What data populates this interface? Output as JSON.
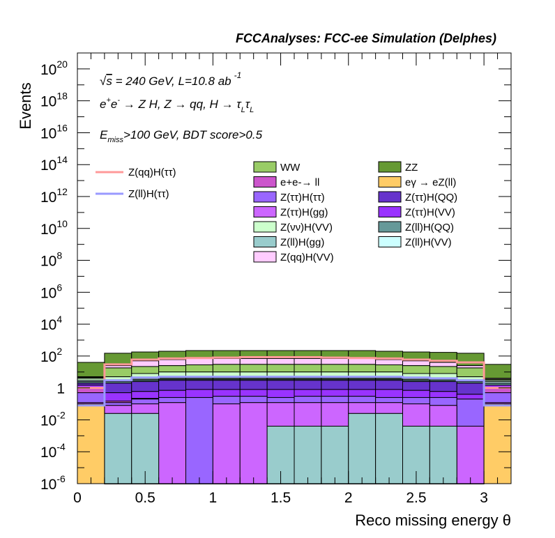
{
  "chart_data": {
    "type": "histogram",
    "header": "FCCAnalyses: FCC-ee Simulation (Delphes)",
    "annotations": [
      "√s = 240 GeV, L=10.8 ab -1",
      "e+e- → Z H, Z → qq, H → τLτL",
      "Emiss>100 GeV, BDT score>0.5"
    ],
    "xlabel": "Reco missing energy θ",
    "ylabel": "Events",
    "xlim": [
      0,
      3.2
    ],
    "ylim": [
      1e-06,
      1e+21
    ],
    "yscale": "log",
    "x_ticks": [
      "0",
      "0.5",
      "1",
      "1.5",
      "2",
      "2.5",
      "3"
    ],
    "y_ticks": [
      {
        "base": "10",
        "exp": "-6"
      },
      {
        "base": "10",
        "exp": "-4"
      },
      {
        "base": "10",
        "exp": "-2"
      },
      {
        "base": "1",
        "exp": ""
      },
      {
        "base": "10",
        "exp": "2"
      },
      {
        "base": "10",
        "exp": "4"
      },
      {
        "base": "10",
        "exp": "6"
      },
      {
        "base": "10",
        "exp": "8"
      },
      {
        "base": "10",
        "exp": "10"
      },
      {
        "base": "10",
        "exp": "12"
      },
      {
        "base": "10",
        "exp": "14"
      },
      {
        "base": "10",
        "exp": "16"
      },
      {
        "base": "10",
        "exp": "18"
      },
      {
        "base": "10",
        "exp": "20"
      }
    ],
    "bin_edges": [
      0,
      0.2,
      0.4,
      0.6,
      0.8,
      1.0,
      1.2,
      1.4,
      1.6,
      1.8,
      2.0,
      2.2,
      2.4,
      2.6,
      2.8,
      3.0,
      3.2
    ],
    "stack_floor": 1e-06,
    "stack_cumulative": [
      {
        "name": "eγ → eZ(ll)",
        "color": "#ffcc66",
        "values": [
          0.1,
          1e-06,
          1e-06,
          1e-06,
          1e-06,
          1e-06,
          1e-06,
          1e-06,
          1e-06,
          1e-06,
          1e-06,
          1e-06,
          1e-06,
          1e-06,
          1e-06,
          0.1
        ]
      },
      {
        "name": "Z(ll)H(gg)",
        "color": "#99cccc",
        "values": [
          0.1,
          0.025,
          0.025,
          1e-06,
          1e-06,
          1e-06,
          1e-06,
          0.004,
          0.004,
          0.004,
          0.025,
          0.025,
          0.004,
          0.004,
          1e-06,
          0.1
        ]
      },
      {
        "name": "Z(ττ)H(gg)",
        "color": "#cc66ff",
        "values": [
          0.12,
          0.08,
          0.1,
          0.12,
          0.0,
          0.1,
          0.12,
          0.12,
          0.12,
          0.12,
          0.12,
          0.12,
          0.1,
          0.08,
          0.004,
          0.12
        ]
      },
      {
        "name": "Z(ττ)H(ττ)",
        "color": "#9966ff",
        "values": [
          0.5,
          0.12,
          0.2,
          0.25,
          0.25,
          0.3,
          0.3,
          0.25,
          0.3,
          0.3,
          0.3,
          0.25,
          0.25,
          0.25,
          0.2,
          0.5
        ]
      },
      {
        "name": "e+e-→ ll",
        "color": "#cc55cc",
        "values": [
          1.0,
          0.15,
          0.22,
          0.25,
          0.25,
          0.3,
          0.3,
          0.25,
          0.3,
          0.3,
          0.3,
          0.25,
          0.25,
          0.25,
          0.2,
          1.0
        ]
      },
      {
        "name": "Z(ττ)H(VV)",
        "color": "#9933ff",
        "values": [
          1.5,
          0.5,
          0.6,
          0.7,
          0.8,
          0.8,
          0.8,
          0.8,
          0.8,
          0.8,
          0.8,
          0.8,
          0.7,
          0.6,
          0.4,
          1.5
        ]
      },
      {
        "name": "Z(ττ)H(QQ)",
        "color": "#6633cc",
        "values": [
          2.0,
          2.0,
          2.5,
          3.0,
          3.0,
          3.0,
          3.0,
          3.0,
          3.0,
          3.0,
          3.0,
          3.0,
          2.5,
          2.5,
          2.0,
          1.5
        ]
      },
      {
        "name": "Z(ll)H(QQ)",
        "color": "#669999",
        "values": [
          2.5,
          2.5,
          3.0,
          3.5,
          3.5,
          3.5,
          3.5,
          3.5,
          3.5,
          3.5,
          3.5,
          3.5,
          3.0,
          3.0,
          2.5,
          2.0
        ]
      },
      {
        "name": "Z(ll)H(VV)",
        "color": "#ccffff",
        "values": [
          3.0,
          3.0,
          3.5,
          4.0,
          4.0,
          4.0,
          4.0,
          4.0,
          4.0,
          4.0,
          4.0,
          4.0,
          3.5,
          3.5,
          3.0,
          2.5
        ]
      },
      {
        "name": "Z(νν)H(VV)",
        "color": "#ccffcc",
        "values": [
          4.0,
          5.0,
          8.0,
          10.0,
          10.0,
          10.0,
          10.0,
          10.0,
          10.0,
          10.0,
          10.0,
          10.0,
          8.0,
          8.0,
          5.0,
          3.0
        ]
      },
      {
        "name": "WW",
        "color": "#99cc66",
        "values": [
          4.5,
          18.0,
          22.0,
          25.0,
          28.0,
          30.0,
          30.0,
          30.0,
          30.0,
          30.0,
          30.0,
          28.0,
          25.0,
          22.0,
          18.0,
          3.5
        ]
      },
      {
        "name": "Z(qq)H(VV)",
        "color": "#ffccff",
        "values": [
          5.0,
          25.0,
          50.0,
          60.0,
          70.0,
          70.0,
          70.0,
          70.0,
          70.0,
          70.0,
          70.0,
          60.0,
          50.0,
          40.0,
          25.0,
          4.0
        ]
      },
      {
        "name": "ZZ",
        "color": "#669933",
        "values": [
          40.0,
          150.0,
          180.0,
          200.0,
          220.0,
          220.0,
          220.0,
          220.0,
          220.0,
          220.0,
          220.0,
          200.0,
          180.0,
          170.0,
          150.0,
          30.0
        ]
      }
    ],
    "lines": [
      {
        "name": "Z(qq)H(ττ)",
        "color": "#ff9999",
        "values": [
          1.0,
          30.0,
          60.0,
          70.0,
          75.0,
          80.0,
          85.0,
          85.0,
          85.0,
          80.0,
          75.0,
          70.0,
          60.0,
          50.0,
          40.0,
          1.0
        ]
      },
      {
        "name": "Z(ll)H(ττ)",
        "color": "#9999ff",
        "values": [
          0.08,
          3.0,
          4.5,
          5.0,
          5.0,
          5.0,
          5.0,
          5.0,
          5.0,
          5.0,
          5.0,
          5.0,
          4.5,
          4.0,
          3.0,
          0.08
        ]
      }
    ],
    "legend_lines": [
      "Z(qq)H(ττ)",
      "Z(ll)H(ττ)"
    ],
    "legend_col1": [
      "WW",
      "e+e-→ ll",
      "Z(ττ)H(ττ)",
      "Z(ττ)H(gg)",
      "Z(νν)H(VV)",
      "Z(ll)H(gg)",
      "Z(qq)H(VV)"
    ],
    "legend_col2": [
      "ZZ",
      "eγ → eZ(ll)",
      "Z(ττ)H(QQ)",
      "Z(ττ)H(VV)",
      "Z(ll)H(QQ)",
      "Z(ll)H(VV)"
    ],
    "colors": {
      "WW": "#99cc66",
      "ZZ": "#669933",
      "e+e-→ ll": "#cc55cc",
      "eγ → eZ(ll)": "#ffcc66",
      "Z(ττ)H(ττ)": "#9966ff",
      "Z(ττ)H(QQ)": "#6633cc",
      "Z(ττ)H(gg)": "#cc66ff",
      "Z(ττ)H(VV)": "#9933ff",
      "Z(νν)H(VV)": "#ccffcc",
      "Z(ll)H(QQ)": "#669999",
      "Z(ll)H(gg)": "#99cccc",
      "Z(ll)H(VV)": "#ccffff",
      "Z(qq)H(VV)": "#ffccff",
      "Z(qq)H(ττ)": "#ff9999",
      "Z(ll)H(ττ)": "#9999ff"
    }
  }
}
